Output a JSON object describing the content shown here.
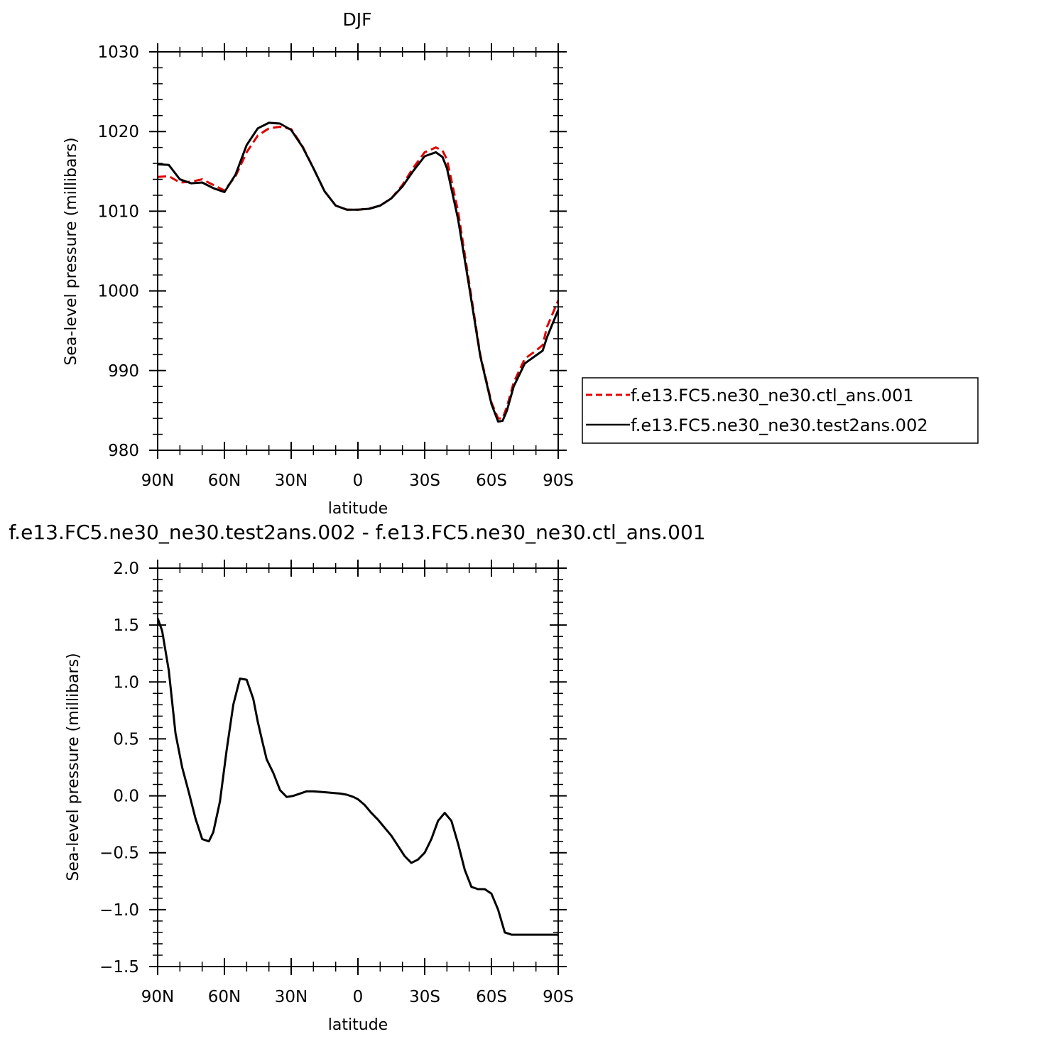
{
  "chart_data": [
    {
      "type": "line",
      "title": "DJF",
      "xlabel": "latitude",
      "ylabel": "Sea-level pressure (millibars)",
      "xlim": [
        90,
        -90
      ],
      "ylim": [
        980,
        1030
      ],
      "x_ticks": [
        90,
        60,
        30,
        0,
        -30,
        -60,
        -90
      ],
      "x_tick_labels": [
        "90N",
        "60N",
        "30N",
        "0",
        "30S",
        "60S",
        "90S"
      ],
      "y_ticks": [
        980,
        990,
        1000,
        1010,
        1020,
        1030
      ],
      "y_tick_labels": [
        "980",
        "990",
        "1000",
        "1010",
        "1020",
        "1030"
      ],
      "legend_position": "right",
      "series": [
        {
          "name": "f.e13.FC5.ne30_ne30.ctl_ans.001",
          "color": "#e00000",
          "dash": "dashed",
          "x": [
            90,
            85,
            80,
            75,
            70,
            65,
            60,
            55,
            50,
            45,
            40,
            35,
            30,
            25,
            20,
            15,
            10,
            5,
            0,
            -5,
            -10,
            -15,
            -20,
            -25,
            -30,
            -35,
            -38,
            -40,
            -45,
            -50,
            -55,
            -60,
            -63,
            -65,
            -67,
            -70,
            -75,
            -80,
            -83,
            -85,
            -90
          ],
          "y": [
            1014.3,
            1014.4,
            1013.6,
            1013.7,
            1014.0,
            1013.3,
            1012.6,
            1014.4,
            1017.4,
            1019.5,
            1020.4,
            1020.6,
            1020.3,
            1018.2,
            1015.4,
            1012.5,
            1010.7,
            1010.2,
            1010.2,
            1010.3,
            1010.7,
            1011.6,
            1013.3,
            1015.5,
            1017.4,
            1018.0,
            1017.6,
            1016.5,
            1010.0,
            1001.0,
            992.0,
            986.0,
            984.0,
            984.0,
            985.5,
            988.5,
            991.5,
            992.5,
            993.2,
            995.5,
            998.8
          ]
        },
        {
          "name": "f.e13.FC5.ne30_ne30.test2ans.002",
          "color": "#000000",
          "dash": "solid",
          "x": [
            90,
            85,
            80,
            75,
            70,
            65,
            60,
            55,
            50,
            45,
            40,
            35,
            30,
            25,
            20,
            15,
            10,
            5,
            0,
            -5,
            -10,
            -15,
            -20,
            -25,
            -30,
            -35,
            -38,
            -40,
            -45,
            -50,
            -55,
            -60,
            -63,
            -65,
            -67,
            -70,
            -75,
            -80,
            -83,
            -85,
            -90
          ],
          "y": [
            1015.9,
            1015.8,
            1014.0,
            1013.5,
            1013.6,
            1012.9,
            1012.4,
            1014.6,
            1018.3,
            1020.4,
            1021.1,
            1021.0,
            1020.2,
            1018.1,
            1015.4,
            1012.5,
            1010.7,
            1010.2,
            1010.2,
            1010.3,
            1010.7,
            1011.6,
            1013.1,
            1015.1,
            1016.9,
            1017.4,
            1016.8,
            1015.4,
            1009.0,
            1000.5,
            991.8,
            985.8,
            983.6,
            983.7,
            985.0,
            988.0,
            990.9,
            991.9,
            992.5,
            994.2,
            997.6
          ]
        }
      ]
    },
    {
      "type": "line",
      "title": "f.e13.FC5.ne30_ne30.test2ans.002 - f.e13.FC5.ne30_ne30.ctl_ans.001",
      "xlabel": "latitude",
      "ylabel": "Sea-level pressure (millibars)",
      "xlim": [
        90,
        -90
      ],
      "ylim": [
        -1.5,
        2.0
      ],
      "x_ticks": [
        90,
        60,
        30,
        0,
        -30,
        -60,
        -90
      ],
      "x_tick_labels": [
        "90N",
        "60N",
        "30N",
        "0",
        "30S",
        "60S",
        "90S"
      ],
      "y_ticks": [
        -1.5,
        -1.0,
        -0.5,
        0.0,
        0.5,
        1.0,
        1.5,
        2.0
      ],
      "y_tick_labels": [
        "−1.5",
        "−1.0",
        "−0.5",
        "0.0",
        "0.5",
        "1.0",
        "1.5",
        "2.0"
      ],
      "series": [
        {
          "color": "#000000",
          "dash": "solid",
          "x": [
            90,
            88,
            85,
            82,
            79,
            76,
            73,
            70,
            67,
            65,
            62,
            59,
            56,
            53,
            50,
            47,
            45,
            43,
            41,
            38,
            35,
            32,
            29,
            26,
            23,
            20,
            17,
            14,
            11,
            8,
            5,
            2,
            0,
            -3,
            -6,
            -9,
            -12,
            -15,
            -18,
            -21,
            -24,
            -27,
            -30,
            -33,
            -36,
            -39,
            -42,
            -45,
            -48,
            -51,
            -54,
            -57,
            -60,
            -63,
            -66,
            -69,
            -72,
            -75,
            -78,
            -81,
            -84,
            -87,
            -90
          ],
          "y": [
            1.56,
            1.45,
            1.1,
            0.55,
            0.25,
            0.03,
            -0.2,
            -0.38,
            -0.4,
            -0.32,
            -0.05,
            0.4,
            0.8,
            1.03,
            1.02,
            0.85,
            0.65,
            0.48,
            0.32,
            0.2,
            0.05,
            -0.01,
            0.0,
            0.02,
            0.04,
            0.04,
            0.035,
            0.03,
            0.025,
            0.02,
            0.01,
            -0.01,
            -0.03,
            -0.08,
            -0.15,
            -0.21,
            -0.28,
            -0.35,
            -0.44,
            -0.53,
            -0.59,
            -0.56,
            -0.5,
            -0.38,
            -0.22,
            -0.15,
            -0.22,
            -0.42,
            -0.65,
            -0.8,
            -0.82,
            -0.82,
            -0.86,
            -1.0,
            -1.2,
            -1.22,
            -1.22,
            -1.22,
            -1.22,
            -1.22,
            -1.22,
            -1.22,
            -1.22
          ]
        }
      ]
    }
  ]
}
